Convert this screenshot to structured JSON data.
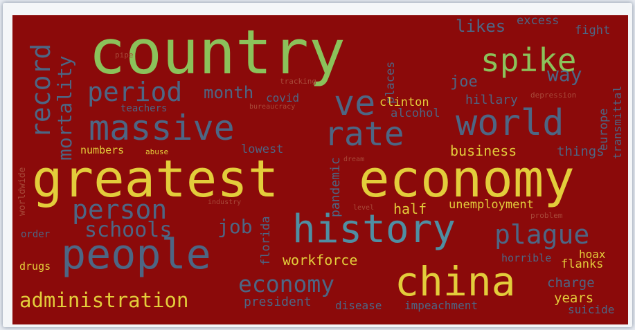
{
  "words": {
    "country": "country",
    "greatest": "greatest",
    "economy_big": "economy",
    "history": "history",
    "china": "china",
    "people": "people",
    "massive": "massive",
    "world": "world",
    "rate": "rate",
    "spike": "spike",
    "ve": "ve",
    "person": "person",
    "period": "period",
    "record": "record",
    "mortality": "mortality",
    "administration": "administration",
    "economy_small": "economy",
    "schools": "schools",
    "plague": "plague",
    "workforce": "workforce",
    "job": "job",
    "half": "half",
    "unemployment": "unemployment",
    "business": "business",
    "month": "month",
    "joe": "joe",
    "way": "way",
    "likes": "likes",
    "hillary": "hillary",
    "clinton": "clinton",
    "alcohol": "alcohol",
    "covid": "covid",
    "teachers": "teachers",
    "numbers": "numbers",
    "abuse": "abuse",
    "lowest": "lowest",
    "things": "things",
    "europe": "europe",
    "transmittal": "transmittal",
    "excess": "excess",
    "fight": "fight",
    "depression": "depression",
    "pandemic": "pandemic",
    "places": "places",
    "florida": "florida",
    "order": "order",
    "drugs": "drugs",
    "president": "president",
    "disease": "disease",
    "impeachment": "impeachment",
    "years": "years",
    "suicide": "suicide",
    "charge": "charge",
    "horrible": "horrible",
    "flanks": "flanks",
    "hoax": "hoax",
    "problem": "problem",
    "level": "level",
    "industry": "industry",
    "worldwide": "worldwide",
    "bureaucracy": "bureaucracy",
    "tracking": "tracking",
    "pipe": "pipe",
    "dream": "dream"
  },
  "colors": {
    "background": "#8b0a0a",
    "green": "#8bc25a",
    "yellow": "#e3cd3b",
    "slate": "#4d6684",
    "teal": "#4f8fa3",
    "dim": "#a84a3a"
  }
}
